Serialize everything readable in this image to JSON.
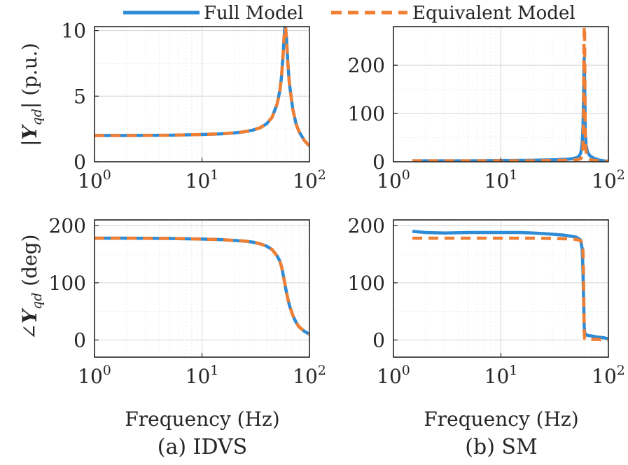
{
  "legend": {
    "entries": [
      "Full Model",
      "Equivalent Model"
    ],
    "placement": "top-center"
  },
  "colors": {
    "full": "#2e8bd6",
    "equivalent": "#f07f33"
  },
  "columns": [
    {
      "caption": "(a) IDVS",
      "xlabel": "Frequency (Hz)"
    },
    {
      "caption": "(b) SM",
      "xlabel": "Frequency (Hz)"
    }
  ],
  "ylabels": {
    "magnitude": {
      "prefix": "|",
      "symbol": "Y",
      "sub": "qd",
      "suffix": "|  (p.u.)"
    },
    "phase": {
      "prefix": "∠",
      "symbol": "Y",
      "sub": "qd",
      "suffix": "  (deg)"
    }
  },
  "chart_data": [
    {
      "id": "idvs-mag",
      "type": "line",
      "xscale": "log",
      "xlim": [
        1,
        100
      ],
      "ylim": [
        0,
        10.3
      ],
      "xticks": [
        1,
        10,
        100
      ],
      "xtick_labels": [
        {
          "base": "10",
          "exp": "0"
        },
        {
          "base": "10",
          "exp": "1"
        },
        {
          "base": "10",
          "exp": "2"
        }
      ],
      "yticks": [
        0,
        5,
        10
      ],
      "ytick_labels": [
        "0",
        "5",
        "10"
      ],
      "xlabel": "",
      "ylabel": "|Y_qd| (p.u.)",
      "grid": true,
      "series": [
        {
          "name": "Full Model",
          "style": "solid",
          "x": [
            1,
            2,
            5,
            10,
            15,
            20,
            25,
            30,
            35,
            40,
            45,
            50,
            53,
            55,
            57,
            58,
            59,
            60,
            61,
            62,
            63,
            65,
            70,
            75,
            80,
            90,
            100
          ],
          "y": [
            2.0,
            2.0,
            2.02,
            2.08,
            2.13,
            2.2,
            2.29,
            2.42,
            2.6,
            2.9,
            3.4,
            4.4,
            5.4,
            6.5,
            8.3,
            9.4,
            10.2,
            10.2,
            9.5,
            8.5,
            7.5,
            6.0,
            4.0,
            2.9,
            2.3,
            1.6,
            1.2
          ]
        },
        {
          "name": "Equivalent Model",
          "style": "dashed",
          "x": [
            1,
            2,
            5,
            10,
            15,
            20,
            25,
            30,
            35,
            40,
            45,
            50,
            53,
            55,
            57,
            58,
            59,
            60,
            61,
            62,
            63,
            65,
            70,
            75,
            80,
            90,
            100
          ],
          "y": [
            2.0,
            2.0,
            2.02,
            2.08,
            2.13,
            2.2,
            2.29,
            2.42,
            2.6,
            2.9,
            3.4,
            4.4,
            5.4,
            6.5,
            8.3,
            9.4,
            10.2,
            10.2,
            9.5,
            8.5,
            7.5,
            6.0,
            4.0,
            2.9,
            2.3,
            1.6,
            1.2
          ]
        }
      ]
    },
    {
      "id": "sm-mag",
      "type": "line",
      "xscale": "log",
      "xlim": [
        1,
        100
      ],
      "ylim": [
        0,
        280
      ],
      "xticks": [
        1,
        10,
        100
      ],
      "xtick_labels": [
        {
          "base": "10",
          "exp": "0"
        },
        {
          "base": "10",
          "exp": "1"
        },
        {
          "base": "10",
          "exp": "2"
        }
      ],
      "yticks": [
        0,
        100,
        200
      ],
      "ytick_labels": [
        "0",
        "100",
        "200"
      ],
      "xlabel": "",
      "ylabel": "",
      "grid": true,
      "series": [
        {
          "name": "Full Model",
          "style": "solid",
          "x": [
            1.5,
            5,
            10,
            20,
            30,
            40,
            45,
            50,
            53,
            55,
            56,
            57,
            58,
            59,
            59.5,
            60,
            60.5,
            61,
            62,
            64,
            67,
            72,
            80,
            90,
            100
          ],
          "y": [
            2,
            2,
            2.5,
            3,
            4,
            5,
            6,
            8,
            11,
            17,
            24,
            38,
            72,
            160,
            215,
            175,
            120,
            60,
            34,
            20,
            13,
            8,
            4,
            2,
            1
          ]
        },
        {
          "name": "Equivalent Model",
          "style": "dashed",
          "x": [
            1.5,
            5,
            10,
            20,
            30,
            40,
            45,
            50,
            53,
            55,
            56,
            57,
            58,
            58.7,
            59.2,
            59.6,
            60,
            60.3,
            60.8,
            61.5,
            62.5,
            64,
            67,
            72,
            80,
            90,
            100
          ],
          "y": [
            2,
            2,
            2,
            2,
            2.5,
            3,
            3.5,
            4,
            5,
            6,
            8,
            12,
            30,
            95,
            230,
            280,
            280,
            200,
            70,
            30,
            15,
            8,
            5,
            3,
            2,
            1,
            1
          ]
        }
      ]
    },
    {
      "id": "idvs-phase",
      "type": "line",
      "xscale": "log",
      "xlim": [
        1,
        100
      ],
      "ylim": [
        -30,
        210
      ],
      "xticks": [
        1,
        10,
        100
      ],
      "xtick_labels": [
        {
          "base": "10",
          "exp": "0"
        },
        {
          "base": "10",
          "exp": "1"
        },
        {
          "base": "10",
          "exp": "2"
        }
      ],
      "yticks": [
        0,
        100,
        200
      ],
      "ytick_labels": [
        "0",
        "100",
        "200"
      ],
      "xlabel": "Frequency (Hz)",
      "ylabel": "∠Y_qd (deg)",
      "grid": true,
      "series": [
        {
          "name": "Full Model",
          "style": "solid",
          "x": [
            1,
            2,
            5,
            10,
            15,
            20,
            25,
            30,
            35,
            40,
            45,
            50,
            53,
            55,
            57,
            59,
            60,
            61,
            63,
            65,
            70,
            75,
            80,
            90,
            100
          ],
          "y": [
            178,
            178,
            177.5,
            176.5,
            175.5,
            174,
            173,
            171,
            168,
            164,
            158,
            147,
            138,
            128,
            114,
            99,
            91,
            84,
            72,
            61,
            43,
            31,
            23,
            15,
            10
          ]
        },
        {
          "name": "Equivalent Model",
          "style": "dashed",
          "x": [
            1,
            2,
            5,
            10,
            15,
            20,
            25,
            30,
            35,
            40,
            45,
            50,
            53,
            55,
            57,
            59,
            60,
            61,
            63,
            65,
            70,
            75,
            80,
            90,
            100
          ],
          "y": [
            178,
            178,
            177.5,
            176.5,
            175.5,
            174,
            173,
            171,
            168,
            164,
            158,
            147,
            138,
            128,
            114,
            99,
            91,
            84,
            72,
            61,
            43,
            31,
            23,
            15,
            10
          ]
        }
      ]
    },
    {
      "id": "sm-phase",
      "type": "line",
      "xscale": "log",
      "xlim": [
        1,
        100
      ],
      "ylim": [
        -30,
        210
      ],
      "xticks": [
        1,
        10,
        100
      ],
      "xtick_labels": [
        {
          "base": "10",
          "exp": "0"
        },
        {
          "base": "10",
          "exp": "1"
        },
        {
          "base": "10",
          "exp": "2"
        }
      ],
      "yticks": [
        0,
        100,
        200
      ],
      "ytick_labels": [
        "0",
        "100",
        "200"
      ],
      "xlabel": "Frequency (Hz)",
      "ylabel": "",
      "grid": true,
      "series": [
        {
          "name": "Full Model",
          "style": "solid",
          "x": [
            1.5,
            2,
            3,
            5,
            7,
            10,
            15,
            20,
            30,
            40,
            50,
            55,
            57,
            58,
            59,
            59.5,
            60,
            60.5,
            61,
            62,
            65,
            70,
            80,
            90,
            100
          ],
          "y": [
            190,
            188,
            187,
            188,
            188,
            188,
            188,
            187,
            185,
            183,
            180,
            175,
            160,
            120,
            60,
            25,
            15,
            12,
            10,
            9,
            8,
            7,
            5,
            4,
            2
          ]
        },
        {
          "name": "Equivalent Model",
          "style": "dashed",
          "x": [
            1.5,
            10,
            20,
            30,
            40,
            50,
            55,
            57,
            58,
            58.7,
            59.2,
            59.6,
            60,
            60.5,
            61,
            63,
            65,
            70,
            80,
            90,
            100
          ],
          "y": [
            178,
            178,
            178,
            177.5,
            177,
            176,
            174,
            170,
            155,
            110,
            50,
            15,
            4,
            2,
            2,
            2,
            1,
            1,
            1,
            0,
            0
          ]
        }
      ]
    }
  ]
}
